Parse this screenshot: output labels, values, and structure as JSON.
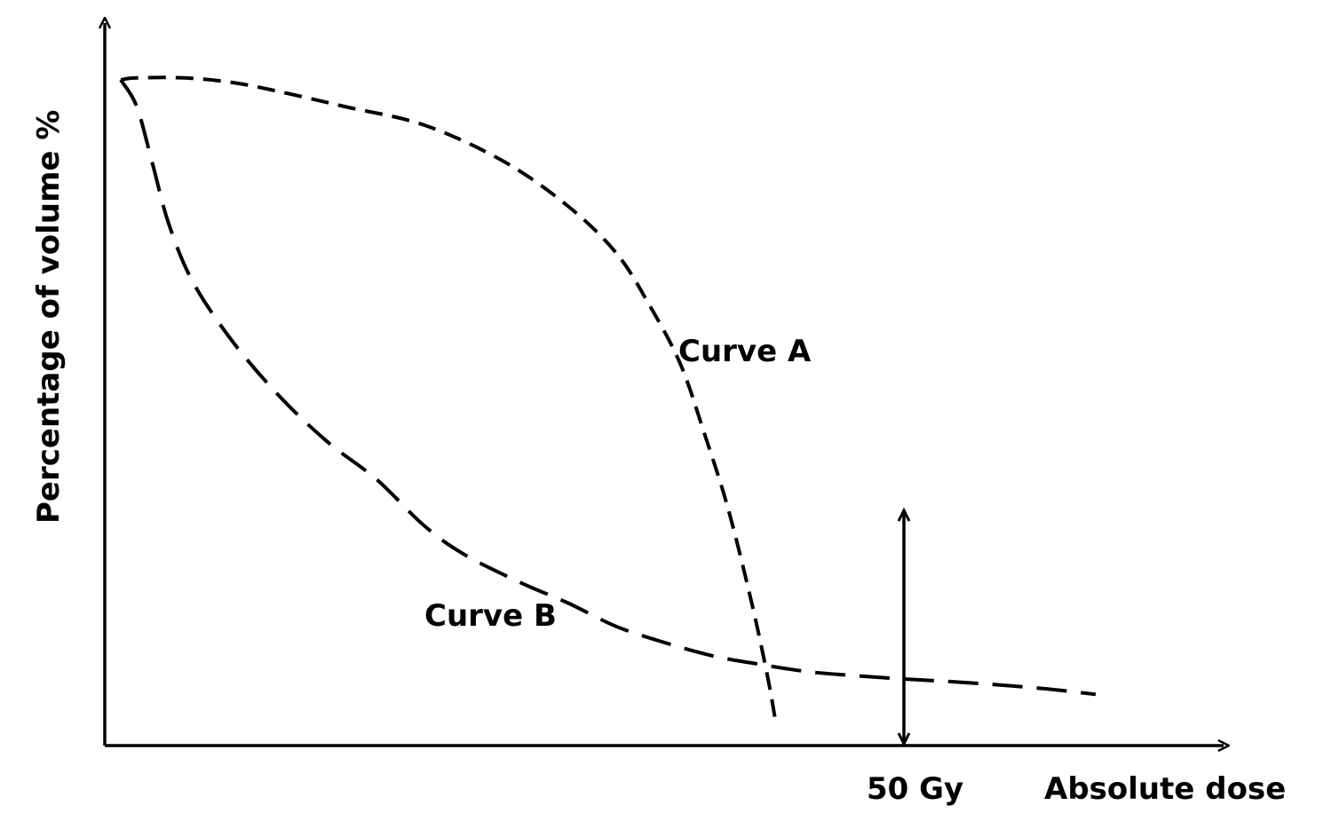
{
  "chart_data": {
    "type": "line",
    "xlabel": "Absolute dose",
    "ylabel": "Percentage of volume %",
    "annotations": [
      {
        "text": "50 Gy",
        "x": 50,
        "kind": "vertical-double-arrow"
      }
    ],
    "series": [
      {
        "name": "Curve A",
        "x": [
          1,
          2,
          5,
          8,
          11,
          15,
          20,
          25,
          29,
          32,
          34,
          36,
          37.5,
          39,
          40.5,
          41.5,
          42
        ],
        "y": [
          100,
          100.3,
          100.3,
          99.6,
          98.2,
          96,
          93.2,
          87.7,
          81,
          74,
          66.5,
          57.4,
          47,
          35.6,
          21.2,
          10,
          3.2
        ]
      },
      {
        "name": "Curve B",
        "x": [
          1,
          2,
          3,
          4,
          5.5,
          8,
          11,
          14,
          17,
          20,
          22.5,
          26,
          29,
          32,
          35,
          38,
          41,
          44,
          47,
          50,
          53,
          56,
          59,
          62
        ],
        "y": [
          100,
          96,
          87.3,
          78.4,
          69.7,
          60.7,
          52.3,
          45.5,
          40,
          33,
          28.7,
          24.5,
          21.4,
          17.9,
          15.5,
          13.5,
          12.2,
          11.1,
          10.5,
          10,
          9.6,
          9.1,
          8.5,
          7.7
        ]
      }
    ]
  }
}
